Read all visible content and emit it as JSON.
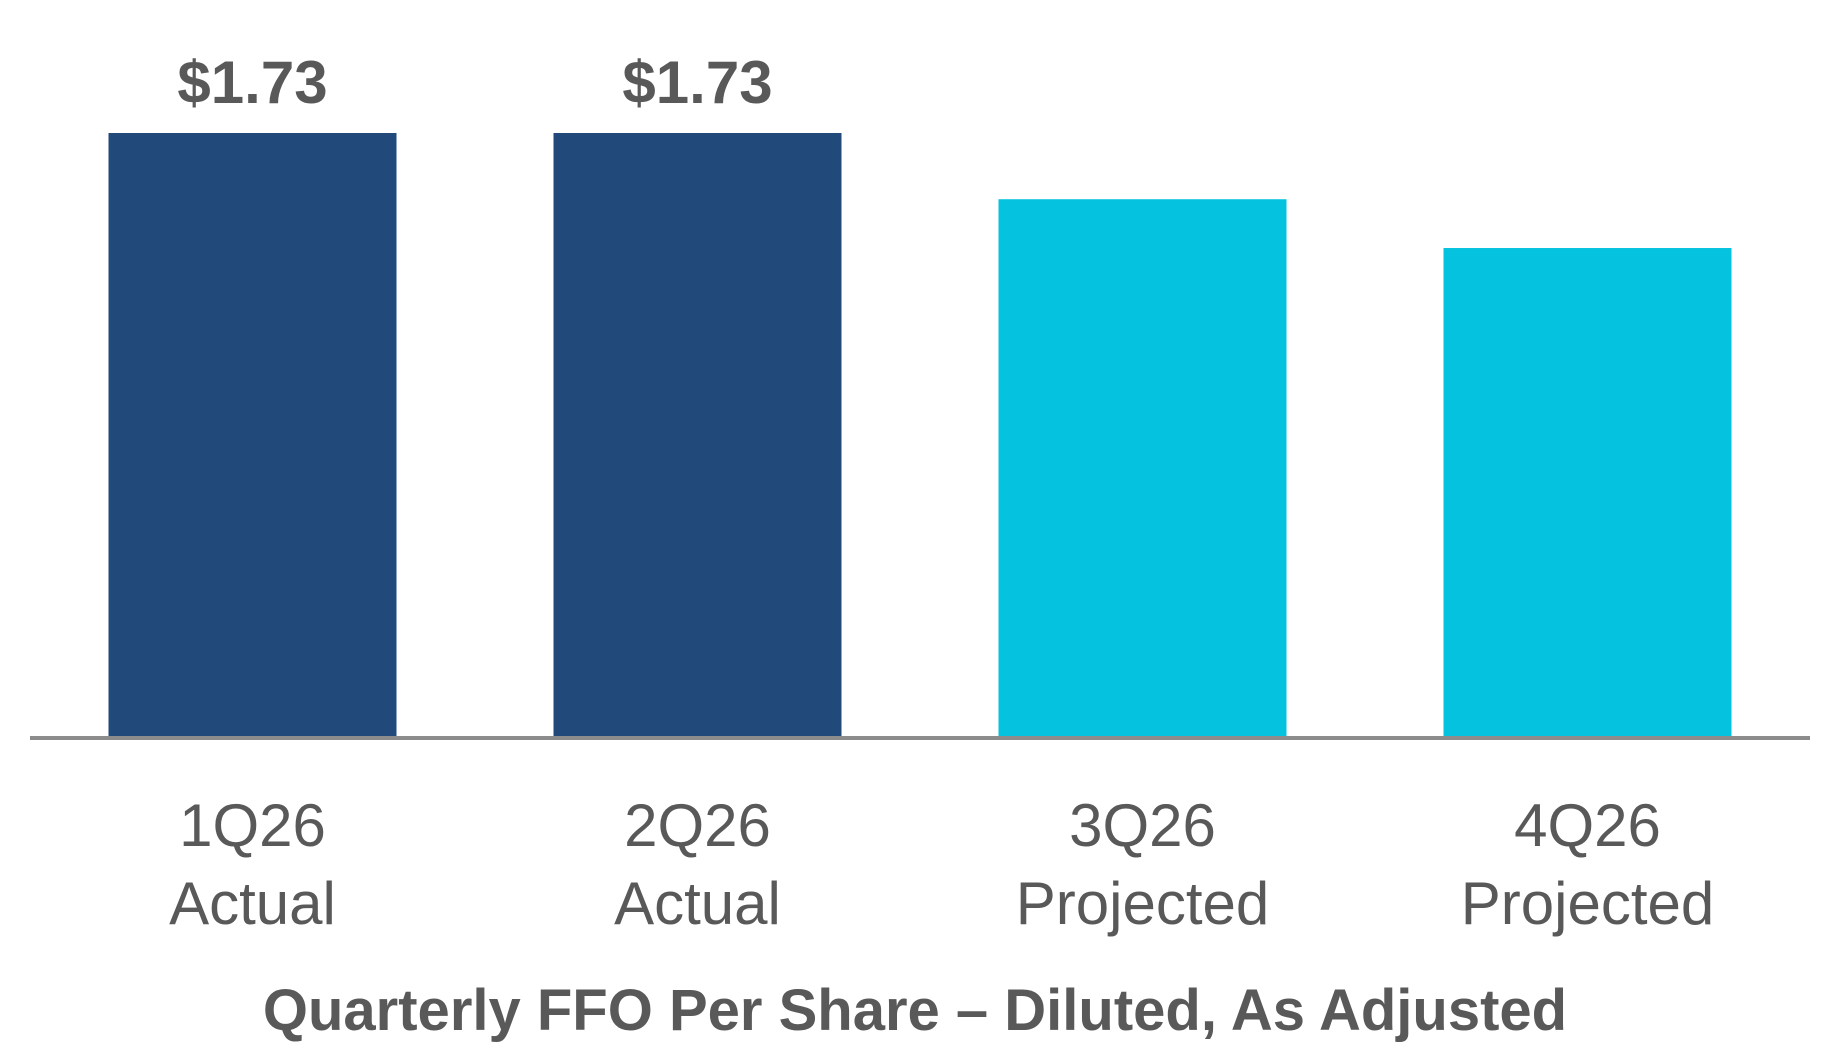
{
  "chart_data": {
    "type": "bar",
    "title": "Quarterly FFO Per Share – Diluted, As Adjusted",
    "categories": [
      [
        "1Q26",
        "Actual"
      ],
      [
        "2Q26",
        "Actual"
      ],
      [
        "3Q26",
        "Projected"
      ],
      [
        "4Q26",
        "Projected"
      ]
    ],
    "values": [
      1.73,
      1.73,
      1.54,
      1.4
    ],
    "data_labels": [
      "$1.73",
      "$1.73",
      "",
      ""
    ],
    "bar_colors": [
      "#214a7b",
      "#214a7b",
      "#05c3de",
      "#05c3de"
    ],
    "ylim": [
      0,
      1.73
    ],
    "axis_color": "#8c8c8c",
    "text_color": "#595959",
    "grid": false,
    "legend": false
  }
}
